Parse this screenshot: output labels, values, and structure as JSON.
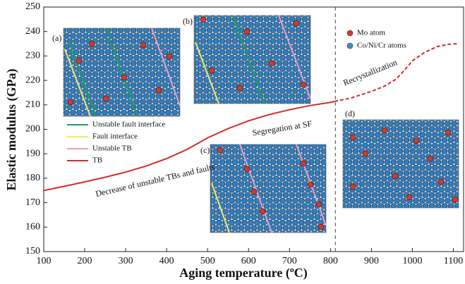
{
  "chart_data": {
    "type": "line",
    "xlabel": "Aging temperature (ºC)",
    "ylabel": "Elastic modulus (GPa)",
    "xlim": [
      100,
      1125
    ],
    "ylim": [
      150,
      250
    ],
    "xticks": [
      100,
      200,
      300,
      400,
      500,
      600,
      700,
      800,
      900,
      1000,
      1100
    ],
    "yticks": [
      150,
      160,
      170,
      180,
      190,
      200,
      210,
      220,
      230,
      240,
      250
    ],
    "series": [
      {
        "color": "#d42a2a",
        "dashed": false,
        "x": [
          100,
          150,
          200,
          250,
          300,
          350,
          400,
          450,
          500,
          550,
          600,
          650,
          700,
          750,
          800,
          810
        ],
        "values": [
          175,
          176.7,
          178.5,
          180.4,
          182.5,
          185,
          188,
          191.8,
          196.5,
          200.3,
          203.5,
          206,
          208,
          209.7,
          211,
          211.4
        ]
      },
      {
        "color": "#d42a2a",
        "dashed": true,
        "x": [
          810,
          850,
          900,
          930,
          960,
          980,
          1000,
          1030,
          1060,
          1090,
          1110
        ],
        "values": [
          211.4,
          212.8,
          215.5,
          217.5,
          220.5,
          224,
          228,
          231.5,
          233.8,
          234.8,
          235
        ]
      }
    ],
    "vline": 812,
    "annotations": [
      "Decrease of unstable TBs and faults",
      "Segregation at SF",
      "Recrystallization"
    ],
    "panel_labels": [
      "(a)",
      "(b)",
      "(c)",
      "(d)"
    ],
    "line_legend": [
      {
        "label": "Unstable fault interface",
        "color": "#1f9e5a"
      },
      {
        "label": "Fault interface",
        "color": "#f2e86a"
      },
      {
        "label": "Unstable TB",
        "color": "#e8a0c8"
      },
      {
        "label": "TB",
        "color": "#c83030"
      }
    ],
    "atom_legend": [
      {
        "label": "Mo atom",
        "color": "#d43a2a"
      },
      {
        "label": "Co/Ni/Cr atoms",
        "color": "#3a8fd0"
      }
    ]
  }
}
